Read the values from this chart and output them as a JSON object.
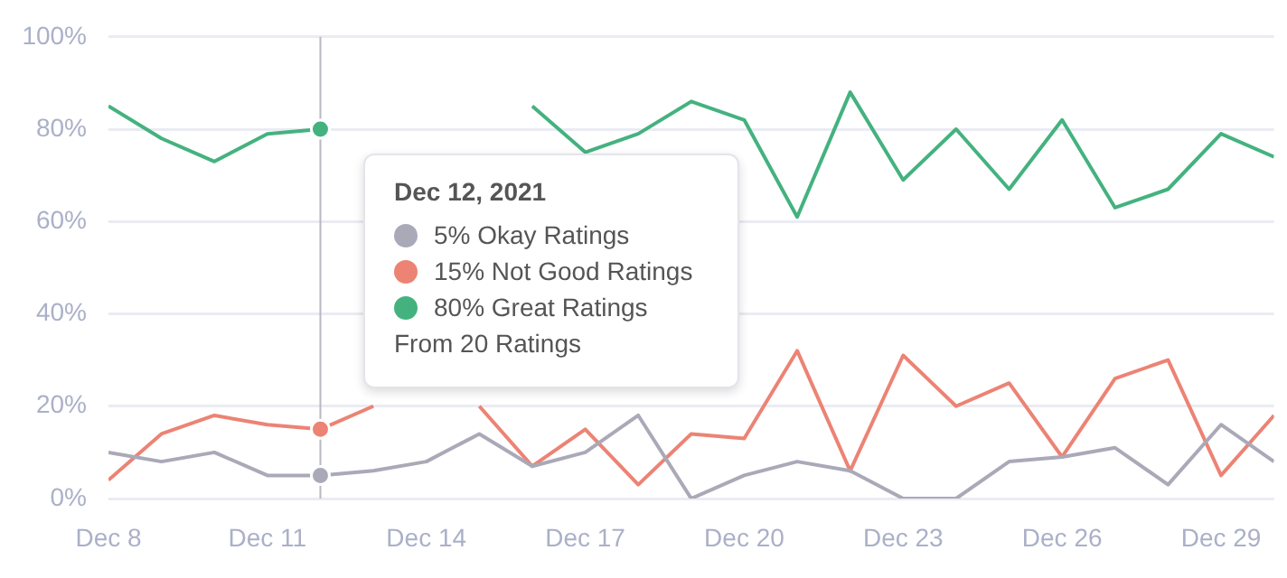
{
  "chart_data": {
    "type": "line",
    "x": [
      "2021-12-08",
      "2021-12-09",
      "2021-12-10",
      "2021-12-11",
      "2021-12-12",
      "2021-12-13",
      "2021-12-14",
      "2021-12-15",
      "2021-12-16",
      "2021-12-17",
      "2021-12-18",
      "2021-12-19",
      "2021-12-20",
      "2021-12-21",
      "2021-12-22",
      "2021-12-23",
      "2021-12-24",
      "2021-12-25",
      "2021-12-26",
      "2021-12-27",
      "2021-12-28",
      "2021-12-29",
      "2021-12-30"
    ],
    "series": [
      {
        "color": "#a9a9b8",
        "values": [
          10,
          8,
          10,
          5,
          5,
          6,
          8,
          14,
          7,
          10,
          18,
          0,
          5,
          8,
          6,
          0,
          0,
          8,
          9,
          11,
          3,
          16,
          8
        ]
      },
      {
        "color": "#ec8374",
        "values": [
          4,
          14,
          18,
          16,
          15,
          20,
          null,
          20,
          7,
          15,
          3,
          14,
          13,
          32,
          6,
          31,
          20,
          25,
          9,
          26,
          30,
          5,
          18
        ]
      },
      {
        "color": "#44b27f",
        "values": [
          85,
          78,
          73,
          79,
          80,
          null,
          null,
          null,
          85,
          75,
          79,
          86,
          82,
          61,
          88,
          69,
          80,
          67,
          82,
          63,
          67,
          79,
          74
        ]
      }
    ],
    "xlim": [
      "2021-12-08",
      "2021-12-30"
    ],
    "xticks": [
      {
        "value": "2021-12-08",
        "label": "Dec 8"
      },
      {
        "value": "2021-12-11",
        "label": "Dec 11"
      },
      {
        "value": "2021-12-14",
        "label": "Dec 14"
      },
      {
        "value": "2021-12-17",
        "label": "Dec 17"
      },
      {
        "value": "2021-12-20",
        "label": "Dec 20"
      },
      {
        "value": "2021-12-23",
        "label": "Dec 23"
      },
      {
        "value": "2021-12-26",
        "label": "Dec 26"
      },
      {
        "value": "2021-12-29",
        "label": "Dec 29"
      }
    ],
    "ylim": [
      0,
      100
    ],
    "yticks": [
      {
        "value": 0,
        "label": "0%"
      },
      {
        "value": 20,
        "label": "20%"
      },
      {
        "value": 40,
        "label": "40%"
      },
      {
        "value": 60,
        "label": "60%"
      },
      {
        "value": 80,
        "label": "80%"
      },
      {
        "value": 100,
        "label": "100%"
      }
    ],
    "grid": "y",
    "legend": false,
    "marker": "none",
    "ref_lines": [
      {
        "axis": "x",
        "value": "2021-12-12",
        "color": "#b8b8c0"
      }
    ],
    "annotations": [
      "Dec 12, 2021",
      "5% Okay Ratings",
      "15% Not Good Ratings",
      "80% Great Ratings",
      "From 20 Ratings"
    ]
  }
}
